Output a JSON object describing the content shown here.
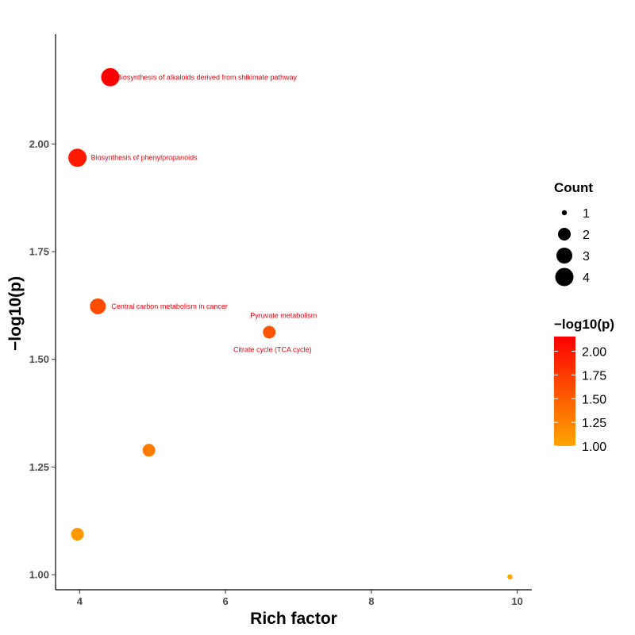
{
  "chart_data": {
    "type": "scatter",
    "xlabel": "Rich factor",
    "ylabel": "−log10(p)",
    "xlim": [
      3.67,
      10.2
    ],
    "ylim": [
      0.965,
      2.255
    ],
    "x_ticks": [
      4,
      6,
      8,
      10
    ],
    "y_ticks": [
      1.0,
      1.25,
      1.5,
      1.75,
      2.0
    ],
    "x_tick_labels": [
      "4",
      "6",
      "8",
      "10"
    ],
    "y_tick_labels": [
      "1.00",
      "1.25",
      "1.50",
      "1.75",
      "2.00"
    ],
    "grid": false,
    "points": [
      {
        "x": 4.42,
        "y": 2.155,
        "count": 4,
        "label": "Biosynthesis of alkaloids derived from shikimate pathway"
      },
      {
        "x": 3.97,
        "y": 1.968,
        "count": 4,
        "label": "Biosynthesis of phenylpropanoids"
      },
      {
        "x": 4.25,
        "y": 1.623,
        "count": 3,
        "label": "Central carbon metabolism in cancer"
      },
      {
        "x": 6.6,
        "y": 1.563,
        "count": 2,
        "label": "Pyruvate metabolism"
      },
      {
        "x": 6.6,
        "y": 1.563,
        "count": 2,
        "label": "Citrate cycle (TCA cycle)"
      },
      {
        "x": 4.95,
        "y": 1.289,
        "count": 2,
        "label": ""
      },
      {
        "x": 3.97,
        "y": 1.094,
        "count": 2,
        "label": ""
      },
      {
        "x": 9.9,
        "y": 0.995,
        "count": 1,
        "label": ""
      }
    ],
    "legend_size": {
      "title": "Count",
      "entries": [
        {
          "label": "1",
          "count": 1
        },
        {
          "label": "2",
          "count": 2
        },
        {
          "label": "3",
          "count": 3
        },
        {
          "label": "4",
          "count": 4
        }
      ]
    },
    "legend_color": {
      "title": "−log10(p)",
      "range": [
        1.0,
        2.155
      ],
      "low_color": "#ffa500",
      "high_color": "#ff0000",
      "ticks": [
        2.0,
        1.75,
        1.5,
        1.25,
        1.0
      ],
      "tick_labels": [
        "2.00",
        "1.75",
        "1.50",
        "1.25",
        "1.00"
      ]
    },
    "legend_placement": "right"
  }
}
